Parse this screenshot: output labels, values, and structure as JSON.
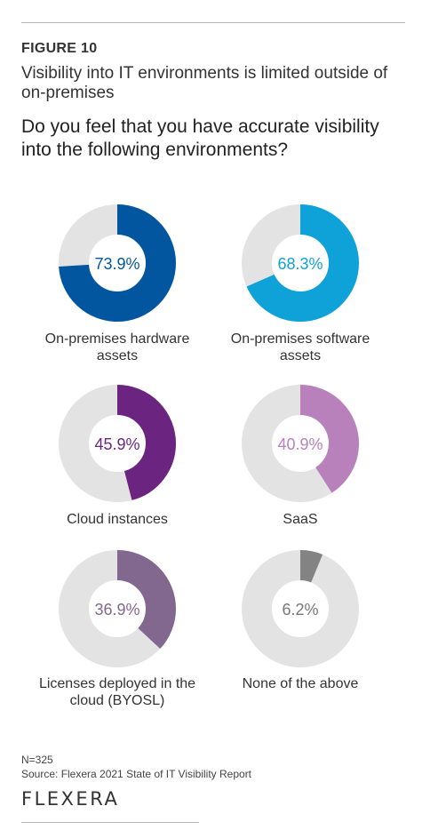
{
  "figure_label": "FIGURE 10",
  "figure_title": "Visibility into IT environments is limited outside of on-premises",
  "question": "Do you feel that you have accurate visibility into the following environments?",
  "n_note": "N=325",
  "source": "Source: Flexera 2021 State of IT Visibility Report",
  "logo_text": "FLEXERA",
  "colors": {
    "track": "#e3e3e3",
    "rule": "#b5b5b5"
  },
  "chart_data": {
    "type": "pie",
    "style": "donut",
    "unit": "%",
    "items": [
      {
        "label": "On-premises hardware assets",
        "value": 73.9,
        "value_label": "73.9%",
        "color": "#02569f"
      },
      {
        "label": "On-premises software assets",
        "value": 68.3,
        "value_label": "68.3%",
        "color": "#0ea2d8"
      },
      {
        "label": "Cloud instances",
        "value": 45.9,
        "value_label": "45.9%",
        "color": "#6b2580"
      },
      {
        "label": "SaaS",
        "value": 40.9,
        "value_label": "40.9%",
        "color": "#b981bc"
      },
      {
        "label": "Licenses deployed in the cloud (BYOSL)",
        "value": 36.9,
        "value_label": "36.9%",
        "color": "#82678f"
      },
      {
        "label": "None of the above",
        "value": 6.2,
        "value_label": "6.2%",
        "color": "#838383"
      }
    ]
  }
}
